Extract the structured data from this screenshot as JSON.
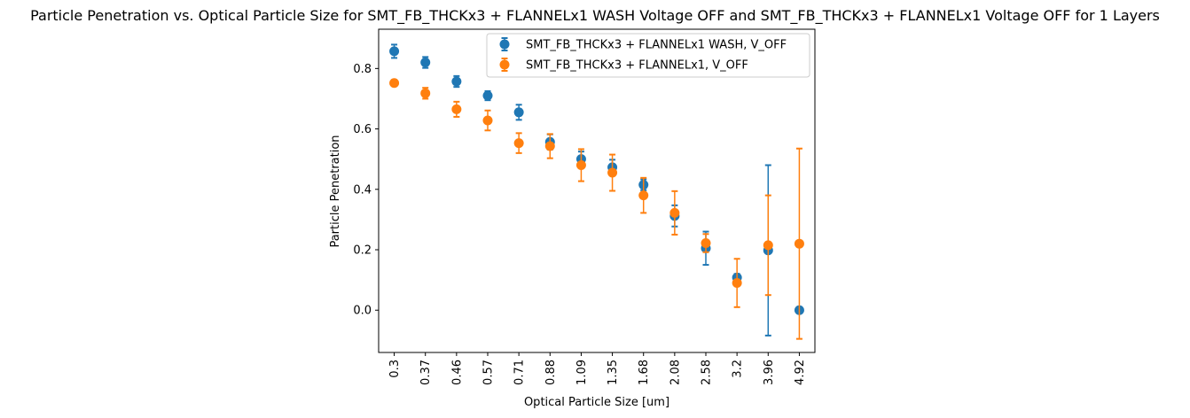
{
  "chart_data": {
    "type": "scatter",
    "title": "Particle Penetration vs. Optical Particle Size for SMT_FB_THCKx3 + FLANNELx1 WASH Voltage OFF and SMT_FB_THCKx3 + FLANNELx1 Voltage OFF for 1 Layers",
    "xlabel": "Optical Particle Size [um]",
    "ylabel": "Particle Penetration",
    "categories": [
      "0.3",
      "0.37",
      "0.46",
      "0.57",
      "0.71",
      "0.88",
      "1.09",
      "1.35",
      "1.68",
      "2.08",
      "2.58",
      "3.2",
      "3.96",
      "4.92"
    ],
    "ylim": [
      -0.14,
      0.93
    ],
    "yticks": [
      "0.0",
      "0.2",
      "0.4",
      "0.6",
      "0.8"
    ],
    "ytick_values": [
      0.0,
      0.2,
      0.4,
      0.6,
      0.8
    ],
    "legend_position": "top-right",
    "grid": false,
    "series": [
      {
        "name": "SMT_FB_THCKx3 + FLANNELx1 WASH, V_OFF",
        "color": "#1f77b4",
        "values": [
          0.857,
          0.82,
          0.757,
          0.71,
          0.655,
          0.557,
          0.5,
          0.473,
          0.415,
          0.312,
          0.205,
          0.108,
          0.198,
          0.0
        ],
        "errors": [
          0.022,
          0.018,
          0.018,
          0.015,
          0.025,
          0.025,
          0.025,
          0.025,
          0.018,
          0.035,
          0.055,
          0.012,
          0.282,
          0.0
        ]
      },
      {
        "name": "SMT_FB_THCKx3 + FLANNELx1, V_OFF",
        "color": "#ff7f0e",
        "values": [
          0.752,
          0.718,
          0.665,
          0.628,
          0.553,
          0.543,
          0.48,
          0.455,
          0.38,
          0.322,
          0.222,
          0.09,
          0.215,
          0.22
        ],
        "errors": [
          0.005,
          0.018,
          0.025,
          0.033,
          0.033,
          0.04,
          0.053,
          0.06,
          0.058,
          0.072,
          0.03,
          0.08,
          0.165,
          0.315
        ]
      }
    ]
  }
}
